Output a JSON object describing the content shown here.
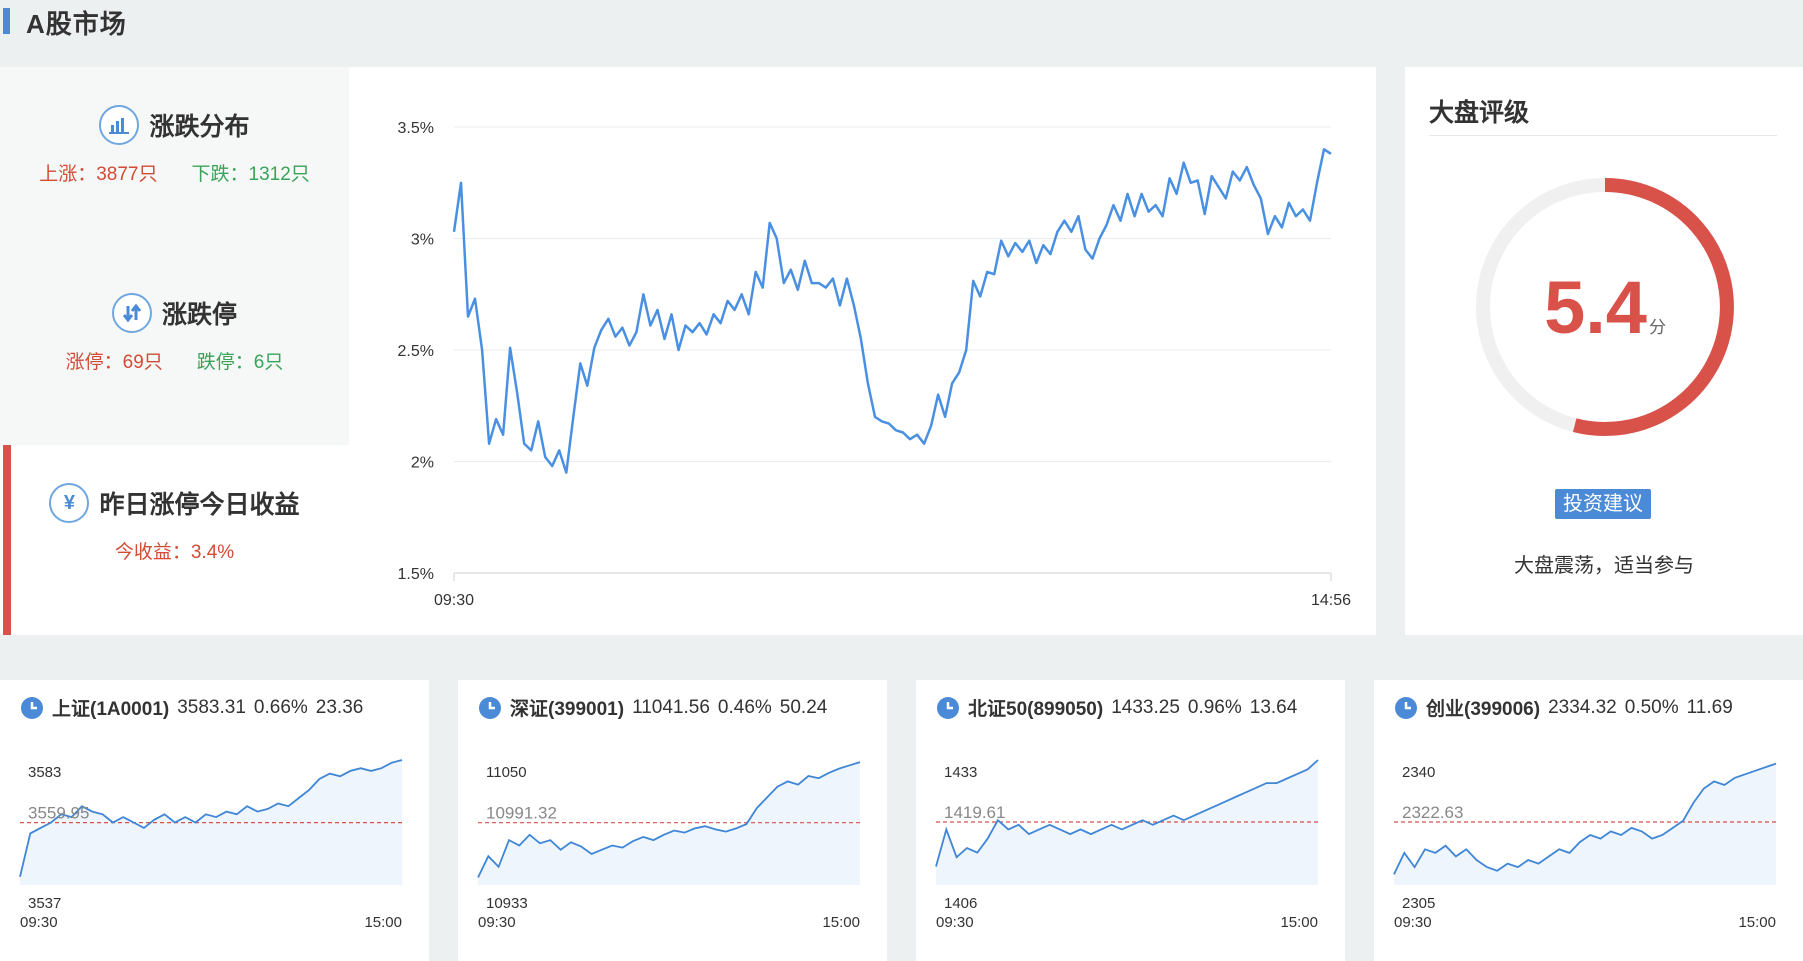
{
  "page": {
    "title": "A股市场",
    "accent": "#4a8ad6"
  },
  "left": {
    "distribution": {
      "title": "涨跌分布",
      "icon": "bar-chart-icon",
      "up": "上涨：3877只",
      "down": "下跌：1312只"
    },
    "limit": {
      "title": "涨跌停",
      "icon": "up-down-arrow-icon",
      "up": "涨停：69只",
      "down": "跌停：6只"
    },
    "yesterday": {
      "title": "昨日涨停今日收益",
      "icon": "yen-icon",
      "profit": "今收益：3.4%"
    }
  },
  "chart_data": [
    {
      "type": "line",
      "title": "",
      "xlabel": "",
      "ylabel": "",
      "y_ticks": [
        "3.5%",
        "3%",
        "2.5%",
        "2%",
        "1.5%"
      ],
      "x_ticks": [
        "09:30",
        "14:56"
      ],
      "ylim": [
        1.5,
        3.5
      ],
      "grid": true,
      "color": "#4a90e2",
      "series": [
        {
          "values": [
            3.03,
            3.25,
            2.65,
            2.73,
            2.5,
            2.08,
            2.19,
            2.12,
            2.51,
            2.31,
            2.08,
            2.05,
            2.18,
            2.02,
            1.98,
            2.05,
            1.95,
            2.2,
            2.44,
            2.34,
            2.51,
            2.59,
            2.64,
            2.56,
            2.6,
            2.52,
            2.58,
            2.75,
            2.61,
            2.68,
            2.55,
            2.66,
            2.5,
            2.61,
            2.58,
            2.62,
            2.57,
            2.66,
            2.62,
            2.72,
            2.68,
            2.75,
            2.66,
            2.85,
            2.78,
            3.07,
            3.0,
            2.8,
            2.86,
            2.77,
            2.9,
            2.8,
            2.8,
            2.78,
            2.82,
            2.7,
            2.82,
            2.7,
            2.55,
            2.35,
            2.2,
            2.18,
            2.17,
            2.14,
            2.13,
            2.1,
            2.12,
            2.08,
            2.16,
            2.3,
            2.2,
            2.35,
            2.4,
            2.5,
            2.81,
            2.74,
            2.85,
            2.84,
            2.99,
            2.92,
            2.98,
            2.94,
            2.99,
            2.89,
            2.97,
            2.93,
            3.03,
            3.08,
            3.03,
            3.1,
            2.95,
            2.91,
            3.0,
            3.06,
            3.15,
            3.08,
            3.2,
            3.1,
            3.2,
            3.12,
            3.15,
            3.1,
            3.27,
            3.2,
            3.34,
            3.25,
            3.26,
            3.11,
            3.28,
            3.23,
            3.18,
            3.3,
            3.26,
            3.32,
            3.24,
            3.18,
            3.02,
            3.1,
            3.05,
            3.16,
            3.1,
            3.13,
            3.08,
            3.25,
            3.4,
            3.38
          ]
        }
      ]
    },
    {
      "type": "line",
      "title": "上证(1A0001)",
      "y_ticks": [
        "3583",
        "3559.95",
        "3537"
      ],
      "x_ticks": [
        "09:30",
        "15:00"
      ],
      "ylim": [
        3537,
        3583
      ],
      "baseline": 3559.95,
      "series": [
        {
          "values": [
            3540,
            3556,
            3558,
            3560,
            3563,
            3562,
            3566,
            3564,
            3563,
            3560,
            3562,
            3560,
            3558,
            3561,
            3563,
            3560,
            3562,
            3560,
            3563,
            3562,
            3564,
            3563,
            3566,
            3564,
            3565,
            3567,
            3566,
            3569,
            3572,
            3576,
            3578,
            3577,
            3579,
            3580,
            3579,
            3580,
            3582,
            3583
          ]
        }
      ]
    },
    {
      "type": "line",
      "title": "深证(399001)",
      "y_ticks": [
        "11050",
        "10991.32",
        "10933"
      ],
      "x_ticks": [
        "09:30",
        "15:00"
      ],
      "ylim": [
        10933,
        11050
      ],
      "baseline": 10991.32,
      "series": [
        {
          "values": [
            10940,
            10960,
            10950,
            10975,
            10970,
            10980,
            10972,
            10975,
            10966,
            10973,
            10969,
            10962,
            10966,
            10970,
            10968,
            10974,
            10978,
            10975,
            10980,
            10984,
            10982,
            10986,
            10988,
            10985,
            10983,
            10986,
            10990,
            11005,
            11015,
            11025,
            11030,
            11027,
            11035,
            11033,
            11038,
            11042,
            11045,
            11048
          ]
        }
      ]
    },
    {
      "type": "line",
      "title": "北证50(899050)",
      "y_ticks": [
        "1433",
        "1419.61",
        "1406"
      ],
      "x_ticks": [
        "09:30",
        "15:00"
      ],
      "ylim": [
        1406,
        1433
      ],
      "baseline": 1419.61,
      "series": [
        {
          "values": [
            1410,
            1418,
            1412,
            1414,
            1413,
            1416,
            1420,
            1418,
            1419,
            1417,
            1418,
            1419,
            1418,
            1417,
            1418,
            1417,
            1418,
            1419,
            1418,
            1419,
            1420,
            1419,
            1420,
            1421,
            1420,
            1421,
            1422,
            1423,
            1424,
            1425,
            1426,
            1427,
            1428,
            1428,
            1429,
            1430,
            1431,
            1433
          ]
        }
      ]
    },
    {
      "type": "line",
      "title": "创业(399006)",
      "y_ticks": [
        "2340",
        "2322.63",
        "2305"
      ],
      "x_ticks": [
        "09:30",
        "15:00"
      ],
      "ylim": [
        2305,
        2340
      ],
      "baseline": 2322.63,
      "series": [
        {
          "values": [
            2308,
            2314,
            2310,
            2315,
            2314,
            2316,
            2313,
            2315,
            2312,
            2310,
            2309,
            2311,
            2310,
            2312,
            2311,
            2313,
            2315,
            2314,
            2317,
            2319,
            2318,
            2320,
            2319,
            2321,
            2320,
            2318,
            2319,
            2321,
            2323,
            2328,
            2332,
            2334,
            2333,
            2335,
            2336,
            2337,
            2338,
            2339
          ]
        }
      ]
    }
  ],
  "rating": {
    "title": "大盘评级",
    "score": "5.4",
    "score_value": 5.4,
    "score_max": 10,
    "unit": "分",
    "advice_label": "投资建议",
    "advice": "大盘震荡，适当参与",
    "ring_color": "#d8524a",
    "track_color": "#f0f0f0"
  },
  "minis": [
    {
      "name": "上证(1A0001)",
      "price": "3583.31",
      "pct": "0.66%",
      "chg": "23.36"
    },
    {
      "name": "深证(399001)",
      "price": "11041.56",
      "pct": "0.46%",
      "chg": "50.24"
    },
    {
      "name": "北证50(899050)",
      "price": "1433.25",
      "pct": "0.96%",
      "chg": "13.64"
    },
    {
      "name": "创业(399006)",
      "price": "2334.32",
      "pct": "0.50%",
      "chg": "11.69"
    }
  ]
}
